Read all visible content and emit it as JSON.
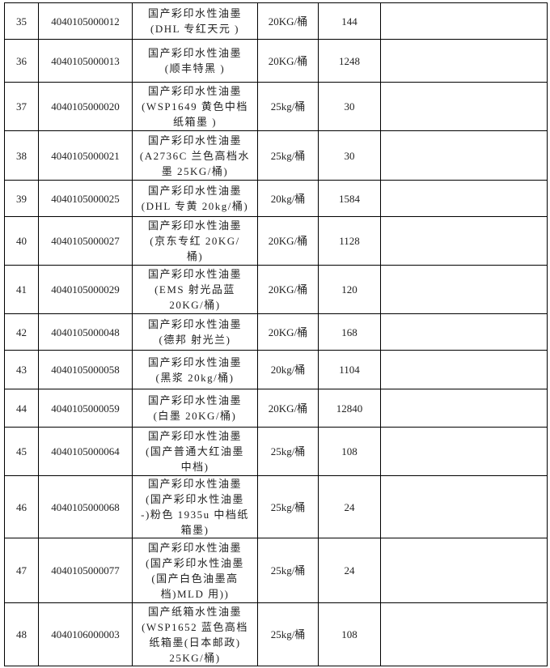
{
  "rows": [
    {
      "no": "35",
      "code": "4040105000012",
      "name": [
        "国产彩印水性油墨",
        "(DHL 专红天元  )"
      ],
      "spec": "20KG/桶",
      "qty": "144",
      "note": ""
    },
    {
      "no": "36",
      "code": "4040105000013",
      "name": [
        "国产彩印水性油墨",
        "(顺丰特黑  )"
      ],
      "spec": "20KG/桶",
      "qty": "1248",
      "note": ""
    },
    {
      "no": "37",
      "code": "4040105000020",
      "name": [
        "国产彩印水性油墨",
        "(WSP1649 黄色中档",
        "纸箱墨  )"
      ],
      "spec": "25kg/桶",
      "qty": "30",
      "note": ""
    },
    {
      "no": "38",
      "code": "4040105000021",
      "name": [
        "国产彩印水性油墨",
        "(A2736C 兰色高档水",
        "墨  25KG/桶)"
      ],
      "spec": "25kg/桶",
      "qty": "30",
      "note": ""
    },
    {
      "no": "39",
      "code": "4040105000025",
      "name": [
        "国产彩印水性油墨",
        "(DHL 专黄  20kg/桶)"
      ],
      "spec": "20kg/桶",
      "qty": "1584",
      "note": ""
    },
    {
      "no": "40",
      "code": "4040105000027",
      "name": [
        "国产彩印水性油墨",
        "(京东专红  20KG/",
        "桶)"
      ],
      "spec": "20KG/桶",
      "qty": "1128",
      "note": ""
    },
    {
      "no": "41",
      "code": "4040105000029",
      "name": [
        "国产彩印水性油墨",
        "(EMS 射光品蓝",
        "20KG/桶)"
      ],
      "spec": "20KG/桶",
      "qty": "120",
      "note": ""
    },
    {
      "no": "42",
      "code": "4040105000048",
      "name": [
        "国产彩印水性油墨",
        "(德邦 射光兰)"
      ],
      "spec": "20KG/桶",
      "qty": "168",
      "note": ""
    },
    {
      "no": "43",
      "code": "4040105000058",
      "name": [
        "国产彩印水性油墨",
        "(黑浆 20kg/桶)"
      ],
      "spec": "20kg/桶",
      "qty": "1104",
      "note": ""
    },
    {
      "no": "44",
      "code": "4040105000059",
      "name": [
        "国产彩印水性油墨",
        "(白墨 20KG/桶)"
      ],
      "spec": "20KG/桶",
      "qty": "12840",
      "note": ""
    },
    {
      "no": "45",
      "code": "4040105000064",
      "name": [
        "国产彩印水性油墨",
        "(国产普通大红油墨",
        "中档)"
      ],
      "spec": "25kg/桶",
      "qty": "108",
      "note": ""
    },
    {
      "no": "46",
      "code": "4040105000068",
      "name": [
        "国产彩印水性油墨",
        "(国产彩印水性油墨",
        "-)粉色 1935u 中档纸",
        "箱墨)"
      ],
      "spec": "25kg/桶",
      "qty": "24",
      "note": ""
    },
    {
      "no": "47",
      "code": "4040105000077",
      "name": [
        "国产彩印水性油墨",
        "(国产彩印水性油墨",
        "(国产白色油墨高",
        "档)MLD 用))"
      ],
      "spec": "25kg/桶",
      "qty": "24",
      "note": ""
    },
    {
      "no": "48",
      "code": "4040106000003",
      "name": [
        "国产纸箱水性油墨",
        "(WSP1652 蓝色高档",
        "纸箱墨(日本邮政)",
        "25KG/桶)"
      ],
      "spec": "25kg/桶",
      "qty": "108",
      "note": ""
    }
  ]
}
